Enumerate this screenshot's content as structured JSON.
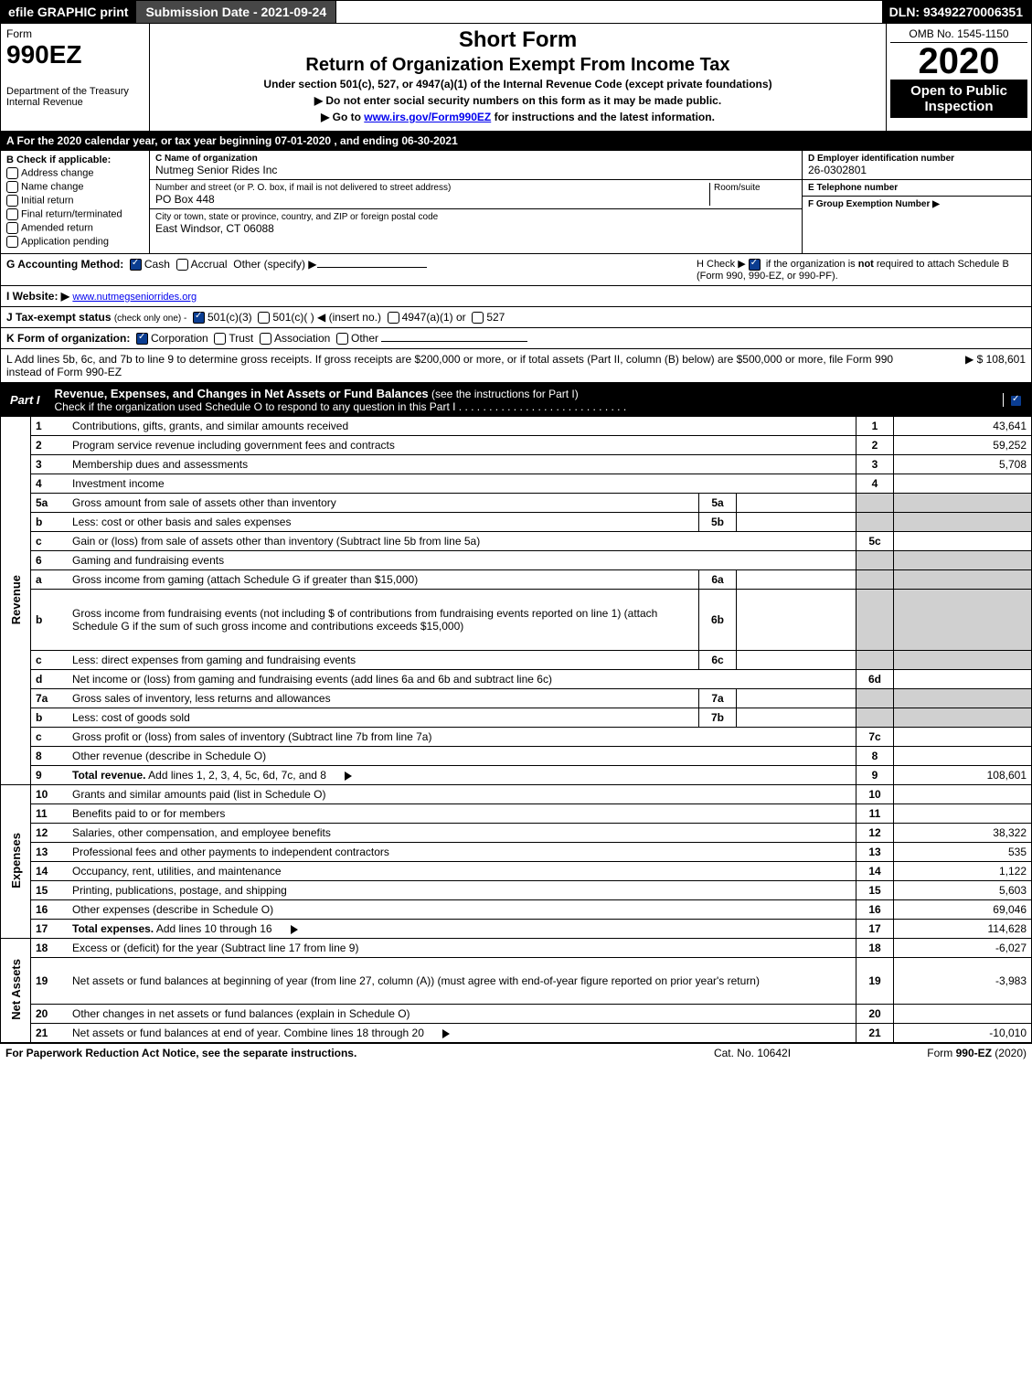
{
  "topbar": {
    "efile": "efile GRAPHIC print",
    "submission": "Submission Date - 2021-09-24",
    "dln": "DLN: 93492270006351"
  },
  "header": {
    "form_word": "Form",
    "form_no": "990EZ",
    "dept": "Department of the Treasury",
    "irs": "Internal Revenue",
    "short": "Short Form",
    "title": "Return of Organization Exempt From Income Tax",
    "under": "Under section 501(c), 527, or 4947(a)(1) of the Internal Revenue Code (except private foundations)",
    "hint1": "▶ Do not enter social security numbers on this form as it may be made public.",
    "hint2_a": "▶ Go to ",
    "hint2_link": "www.irs.gov/Form990EZ",
    "hint2_b": " for instructions and the latest information.",
    "omb": "OMB No. 1545-1150",
    "year": "2020",
    "open": "Open to Public Inspection"
  },
  "rowA": "A   For the 2020 calendar year, or tax year beginning 07-01-2020 , and ending 06-30-2021",
  "B": {
    "title": "B  Check if applicable:",
    "items": [
      "Address change",
      "Name change",
      "Initial return",
      "Final return/terminated",
      "Amended return",
      "Application pending"
    ]
  },
  "C": {
    "name_label": "C Name of organization",
    "name": "Nutmeg Senior Rides Inc",
    "addr_label": "Number and street (or P. O. box, if mail is not delivered to street address)",
    "room_label": "Room/suite",
    "addr": "PO Box 448",
    "city_label": "City or town, state or province, country, and ZIP or foreign postal code",
    "city": "East Windsor, CT  06088"
  },
  "D": {
    "ein_label": "D Employer identification number",
    "ein": "26-0302801",
    "tel_label": "E Telephone number",
    "tel": "",
    "group_label": "F Group Exemption Number   ▶",
    "group": ""
  },
  "G": {
    "label": "G Accounting Method:",
    "cash": "Cash",
    "accrual": "Accrual",
    "other": "Other (specify) ▶"
  },
  "H": {
    "text_a": "H  Check ▶ ",
    "text_b": " if the organization is ",
    "not": "not",
    "text_c": " required to attach Schedule B",
    "text_d": "(Form 990, 990-EZ, or 990-PF)."
  },
  "I": {
    "label": "I Website: ▶",
    "url": "www.nutmegseniorrides.org"
  },
  "J": {
    "label": "J Tax-exempt status",
    "sub": "(check only one) -",
    "a": "501(c)(3)",
    "b": "501(c)(  ) ◀ (insert no.)",
    "c": "4947(a)(1) or",
    "d": "527"
  },
  "K": {
    "label": "K Form of organization:",
    "corp": "Corporation",
    "trust": "Trust",
    "assoc": "Association",
    "other": "Other"
  },
  "L": {
    "text": "L Add lines 5b, 6c, and 7b to line 9 to determine gross receipts. If gross receipts are $200,000 or more, or if total assets (Part II, column (B) below) are $500,000 or more, file Form 990 instead of Form 990-EZ",
    "amount": "▶ $ 108,601"
  },
  "part1": {
    "label": "Part I",
    "title": "Revenue, Expenses, and Changes in Net Assets or Fund Balances",
    "sub": "(see the instructions for Part I)",
    "check": "Check if the organization used Schedule O to respond to any question in this Part I"
  },
  "sections": {
    "revenue": "Revenue",
    "expenses": "Expenses",
    "net": "Net Assets"
  },
  "rows": [
    {
      "n": "1",
      "d": "Contributions, gifts, grants, and similar amounts received",
      "rn": "1",
      "amt": "43,641"
    },
    {
      "n": "2",
      "d": "Program service revenue including government fees and contracts",
      "rn": "2",
      "amt": "59,252"
    },
    {
      "n": "3",
      "d": "Membership dues and assessments",
      "rn": "3",
      "amt": "5,708"
    },
    {
      "n": "4",
      "d": "Investment income",
      "rn": "4",
      "amt": ""
    },
    {
      "n": "5a",
      "d": "Gross amount from sale of assets other than inventory",
      "mid": "5a"
    },
    {
      "n": "b",
      "d": "Less: cost or other basis and sales expenses",
      "mid": "5b"
    },
    {
      "n": "c",
      "d": "Gain or (loss) from sale of assets other than inventory (Subtract line 5b from line 5a)",
      "rn": "5c",
      "amt": ""
    },
    {
      "n": "6",
      "d": "Gaming and fundraising events",
      "plain": true
    },
    {
      "n": "a",
      "d": "Gross income from gaming (attach Schedule G if greater than $15,000)",
      "mid": "6a"
    },
    {
      "n": "b",
      "d": "Gross income from fundraising events (not including $                    of contributions from fundraising events reported on line 1) (attach Schedule G if the sum of such gross income and contributions exceeds $15,000)",
      "mid": "6b",
      "tall": true
    },
    {
      "n": "c",
      "d": "Less: direct expenses from gaming and fundraising events",
      "mid": "6c"
    },
    {
      "n": "d",
      "d": "Net income or (loss) from gaming and fundraising events (add lines 6a and 6b and subtract line 6c)",
      "rn": "6d",
      "amt": ""
    },
    {
      "n": "7a",
      "d": "Gross sales of inventory, less returns and allowances",
      "mid": "7a"
    },
    {
      "n": "b",
      "d": "Less: cost of goods sold",
      "mid": "7b"
    },
    {
      "n": "c",
      "d": "Gross profit or (loss) from sales of inventory (Subtract line 7b from line 7a)",
      "rn": "7c",
      "amt": ""
    },
    {
      "n": "8",
      "d": "Other revenue (describe in Schedule O)",
      "rn": "8",
      "amt": ""
    },
    {
      "n": "9",
      "d": "Total revenue. Add lines 1, 2, 3, 4, 5c, 6d, 7c, and 8",
      "rn": "9",
      "amt": "108,601",
      "bold": true,
      "arrow": true
    }
  ],
  "exp": [
    {
      "n": "10",
      "d": "Grants and similar amounts paid (list in Schedule O)",
      "rn": "10",
      "amt": ""
    },
    {
      "n": "11",
      "d": "Benefits paid to or for members",
      "rn": "11",
      "amt": ""
    },
    {
      "n": "12",
      "d": "Salaries, other compensation, and employee benefits",
      "rn": "12",
      "amt": "38,322"
    },
    {
      "n": "13",
      "d": "Professional fees and other payments to independent contractors",
      "rn": "13",
      "amt": "535"
    },
    {
      "n": "14",
      "d": "Occupancy, rent, utilities, and maintenance",
      "rn": "14",
      "amt": "1,122"
    },
    {
      "n": "15",
      "d": "Printing, publications, postage, and shipping",
      "rn": "15",
      "amt": "5,603"
    },
    {
      "n": "16",
      "d": "Other expenses (describe in Schedule O)",
      "rn": "16",
      "amt": "69,046"
    },
    {
      "n": "17",
      "d": "Total expenses. Add lines 10 through 16",
      "rn": "17",
      "amt": "114,628",
      "bold": true,
      "arrow": true
    }
  ],
  "net": [
    {
      "n": "18",
      "d": "Excess or (deficit) for the year (Subtract line 17 from line 9)",
      "rn": "18",
      "amt": "-6,027"
    },
    {
      "n": "19",
      "d": "Net assets or fund balances at beginning of year (from line 27, column (A)) (must agree with end-of-year figure reported on prior year's return)",
      "rn": "19",
      "amt": "-3,983",
      "tall": true
    },
    {
      "n": "20",
      "d": "Other changes in net assets or fund balances (explain in Schedule O)",
      "rn": "20",
      "amt": ""
    },
    {
      "n": "21",
      "d": "Net assets or fund balances at end of year. Combine lines 18 through 20",
      "rn": "21",
      "amt": "-10,010",
      "arrow": true
    }
  ],
  "footer": {
    "left": "For Paperwork Reduction Act Notice, see the separate instructions.",
    "mid": "Cat. No. 10642I",
    "right_a": "Form ",
    "right_b": "990-EZ",
    "right_c": " (2020)"
  }
}
